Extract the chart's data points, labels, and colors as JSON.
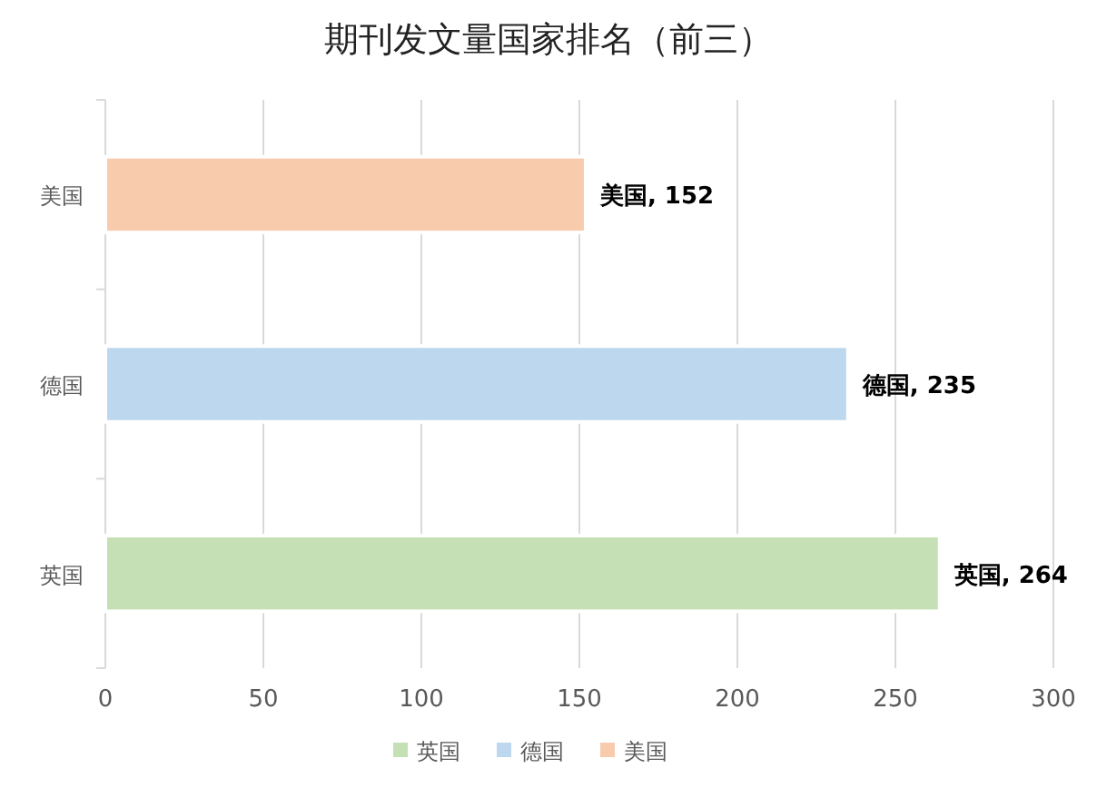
{
  "chart_data": {
    "type": "bar",
    "orientation": "horizontal",
    "title": "期刊发文量国家排名（前三）",
    "categories": [
      "美国",
      "德国",
      "英国"
    ],
    "series": [
      {
        "name": "英国",
        "color": "#c5e0b4",
        "values": [
          null,
          null,
          264
        ],
        "value_labels": [
          null,
          null,
          "英国, 264"
        ]
      },
      {
        "name": "德国",
        "color": "#bdd7ee",
        "values": [
          null,
          235,
          null
        ],
        "value_labels": [
          null,
          "德国, 235",
          null
        ]
      },
      {
        "name": "美国",
        "color": "#f8cbad",
        "values": [
          152,
          null,
          null
        ],
        "value_labels": [
          "美国, 152",
          null,
          null
        ]
      }
    ],
    "xlim": [
      0,
      300
    ],
    "xticks": [
      0,
      50,
      100,
      150,
      200,
      250,
      300
    ],
    "grid": "x",
    "legend": "bottom"
  }
}
